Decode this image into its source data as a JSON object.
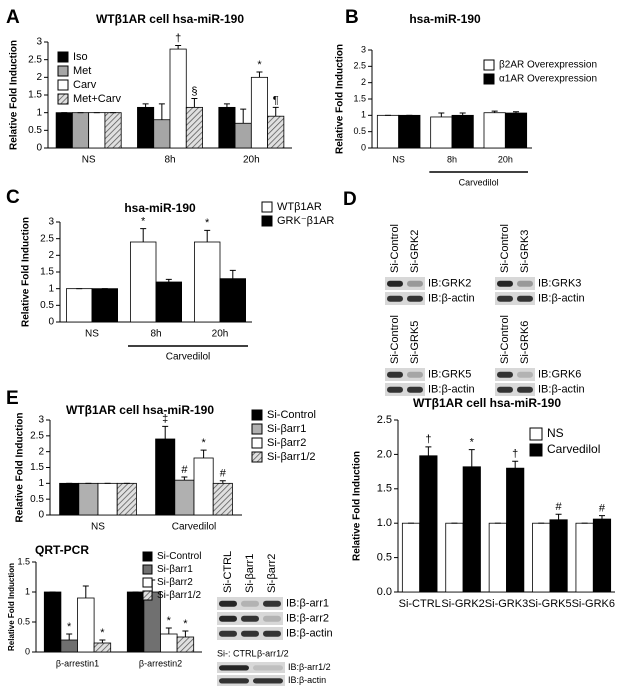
{
  "chart_data": [
    {
      "type": "bar",
      "panel": "A",
      "title": "WTβ1AR cell hsa-miR-190",
      "y_label": "Relative Fold Induction",
      "categories": [
        "NS",
        "8h",
        "20h"
      ],
      "ylim": [
        0,
        3
      ],
      "yticks": [
        0,
        0.5,
        1,
        1.5,
        2,
        2.5,
        3
      ],
      "series": [
        {
          "name": "Iso",
          "color": "#000000",
          "values": [
            1,
            1.15,
            1.15
          ],
          "errors": [
            0,
            0.1,
            0.1
          ],
          "markers": [
            null,
            null,
            null
          ]
        },
        {
          "name": "Met",
          "color": "#a6a6a6",
          "values": [
            1,
            0.8,
            0.7
          ],
          "errors": [
            0,
            0.45,
            0.4
          ],
          "markers": [
            null,
            null,
            null
          ]
        },
        {
          "name": "Carv",
          "color": "#ffffff",
          "values": [
            1,
            2.8,
            2.0
          ],
          "errors": [
            0,
            0.1,
            0.15
          ],
          "markers": [
            null,
            "†",
            "*"
          ]
        },
        {
          "name": "Met+Carv",
          "color": "#cccccc",
          "hatch": true,
          "values": [
            1,
            1.15,
            0.9
          ],
          "errors": [
            0,
            0.25,
            0.25
          ],
          "markers": [
            null,
            "§",
            "¶"
          ]
        }
      ]
    },
    {
      "type": "bar",
      "panel": "B",
      "title": "hsa-miR-190",
      "y_label": "Relative Fold Induction",
      "categories": [
        "NS",
        "8h",
        "20h"
      ],
      "group_label": "Carvedilol",
      "ylim": [
        0,
        3
      ],
      "yticks": [
        0,
        0.5,
        1,
        1.5,
        2,
        2.5,
        3
      ],
      "series": [
        {
          "name": "β2AR Overexpression",
          "color": "#ffffff",
          "values": [
            1,
            0.95,
            1.08
          ],
          "errors": [
            0,
            0.12,
            0.05
          ]
        },
        {
          "name": "α1AR Overexpression",
          "color": "#000000",
          "values": [
            1,
            1.0,
            1.07
          ],
          "errors": [
            0,
            0.07,
            0.04
          ]
        }
      ]
    },
    {
      "type": "bar",
      "panel": "C",
      "title": "hsa-miR-190",
      "y_label": "Relative Fold Induction",
      "categories": [
        "NS",
        "8h",
        "20h"
      ],
      "group_label": "Carvedilol",
      "ylim": [
        0,
        3
      ],
      "yticks": [
        0,
        0.5,
        1,
        1.5,
        2,
        2.5,
        3
      ],
      "series": [
        {
          "name": "WTβ1AR",
          "color": "#ffffff",
          "values": [
            1,
            2.4,
            2.4
          ],
          "errors": [
            0,
            0.4,
            0.35
          ],
          "markers": [
            null,
            "*",
            "*"
          ]
        },
        {
          "name": "GRK⁻β1AR",
          "color": "#000000",
          "values": [
            1,
            1.2,
            1.3
          ],
          "errors": [
            0,
            0.08,
            0.25
          ],
          "markers": [
            null,
            null,
            null
          ]
        }
      ]
    },
    {
      "type": "bar",
      "panel": "D",
      "title": "WTβ1AR cell hsa-miR-190",
      "y_label": "Relative Fold Induction",
      "categories": [
        "Si-CTRL",
        "Si-GRK2",
        "Si-GRK3",
        "Si-GRK5",
        "Si-GRK6"
      ],
      "ylim": [
        0,
        2.5
      ],
      "yticks": [
        {
          "value": 0,
          "label": "0.0"
        },
        {
          "value": 0.5,
          "label": "0.5"
        },
        {
          "value": 1,
          "label": "1.0"
        },
        {
          "value": 1.5,
          "label": "1.5"
        },
        {
          "value": 2,
          "label": "2.0"
        },
        {
          "value": 2.5,
          "label": "2.5"
        }
      ],
      "series": [
        {
          "name": "NS",
          "color": "#ffffff",
          "values": [
            1,
            1,
            1,
            1,
            1
          ],
          "errors": [
            0,
            0,
            0,
            0,
            0
          ]
        },
        {
          "name": "Carvedilol",
          "color": "#000000",
          "values": [
            1.98,
            1.82,
            1.8,
            1.05,
            1.06
          ],
          "errors": [
            0.13,
            0.25,
            0.1,
            0.08,
            0.05
          ],
          "markers": [
            "†",
            "*",
            "†",
            "#",
            "#"
          ]
        }
      ]
    },
    {
      "type": "bar",
      "panel": "E",
      "title": "WTβ1AR cell hsa-miR-190",
      "y_label": "Relative Fold Induction",
      "categories": [
        "NS",
        "Carvedilol"
      ],
      "ylim": [
        0,
        3
      ],
      "yticks": [
        0,
        0.5,
        1,
        1.5,
        2,
        2.5,
        3
      ],
      "series": [
        {
          "name": "Si-Control",
          "color": "#000000",
          "values": [
            1,
            2.4
          ],
          "errors": [
            0,
            0.4
          ],
          "markers": [
            null,
            "‡"
          ]
        },
        {
          "name": "Si-βarr1",
          "color": "#b0b0b0",
          "values": [
            1,
            1.1
          ],
          "errors": [
            0,
            0.1
          ],
          "markers": [
            null,
            "#"
          ]
        },
        {
          "name": "Si-βarr2",
          "color": "#ffffff",
          "values": [
            1,
            1.8
          ],
          "errors": [
            0,
            0.25
          ],
          "markers": [
            null,
            "*"
          ]
        },
        {
          "name": "Si-βarr1/2",
          "color": "#cccccc",
          "hatch": true,
          "values": [
            1,
            1.0
          ],
          "errors": [
            0,
            0.08
          ],
          "markers": [
            null,
            "#"
          ]
        }
      ]
    },
    {
      "type": "bar",
      "title": "QRT-PCR",
      "y_label": "Relative Fold Induction",
      "categories": [
        "β-arrestin1",
        "β-arrestin2"
      ],
      "ylim": [
        0,
        1.5
      ],
      "yticks": [
        0,
        0.5,
        1,
        1.5
      ],
      "series": [
        {
          "name": "Si-Control",
          "color": "#000000",
          "values": [
            1,
            1
          ],
          "errors": [
            0,
            0
          ],
          "markers": [
            null,
            null
          ]
        },
        {
          "name": "Si-βarr1",
          "color": "#707070",
          "values": [
            0.2,
            1
          ],
          "errors": [
            0.1,
            0.2
          ],
          "markers": [
            "*",
            null
          ]
        },
        {
          "name": "Si-βarr2",
          "color": "#ffffff",
          "values": [
            0.9,
            0.3
          ],
          "errors": [
            0.2,
            0.1
          ],
          "markers": [
            null,
            "*"
          ]
        },
        {
          "name": "Si-βarr1/2",
          "color": "#cccccc",
          "hatch": true,
          "values": [
            0.15,
            0.25
          ],
          "errors": [
            0.05,
            0.1
          ],
          "markers": [
            "*",
            "*"
          ]
        }
      ]
    }
  ],
  "blots": [
    {
      "lanes": [
        "Si-Control",
        "Si-GRK2"
      ],
      "rows": [
        "IB:GRK2",
        "IB:β-actin"
      ]
    },
    {
      "lanes": [
        "Si-Control",
        "Si-GRK3"
      ],
      "rows": [
        "IB:GRK3",
        "IB:β-actin"
      ]
    },
    {
      "lanes": [
        "Si-Control",
        "Si-GRK5"
      ],
      "rows": [
        "IB:GRK5",
        "IB:β-actin"
      ]
    },
    {
      "lanes": [
        "Si-Control",
        "Si-GRK6"
      ],
      "rows": [
        "IB:GRK6",
        "IB:β-actin"
      ]
    },
    {
      "lanes": [
        "Si-CTRL",
        "Si-βarr1",
        "Si-βarr2"
      ],
      "rows": [
        "IB:β-arr1",
        "IB:β-arr2",
        "IB:β-actin"
      ]
    },
    {
      "lanes": [
        "Si-: CTRL",
        "β-arr1/2"
      ],
      "rows": [
        "IB:β-arr1/2",
        "IB:β-actin"
      ]
    }
  ]
}
